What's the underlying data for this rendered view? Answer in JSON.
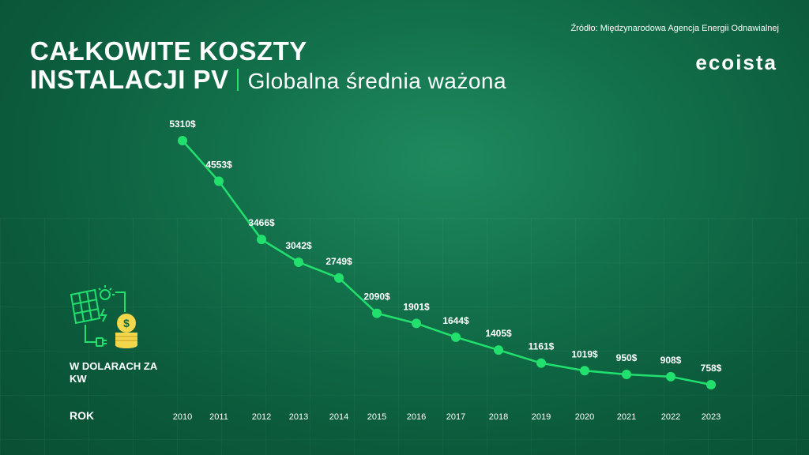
{
  "header": {
    "title_line1": "CAŁKOWITE KOSZTY",
    "title_line2": "INSTALACJI PV",
    "subtitle": "Globalna średnia ważona",
    "source": "Źródło: Międzynarodowa Agencja Energii Odnawialnej",
    "brand": "ecoista"
  },
  "labels": {
    "unit": "W DOLARACH ZA KW",
    "year": "ROK"
  },
  "icons": {
    "solar": "solar-panel-icon",
    "coins": "coin-stack-icon"
  },
  "colors": {
    "accent": "#22e06e",
    "text": "#ffffff",
    "background": "#0f6a45"
  },
  "chart_data": {
    "type": "line",
    "x": [
      "2010",
      "2011",
      "2012",
      "2013",
      "2014",
      "2015",
      "2016",
      "2017",
      "2018",
      "2019",
      "2020",
      "2021",
      "2022",
      "2023"
    ],
    "values": [
      5310,
      4553,
      3466,
      3042,
      2749,
      2090,
      1901,
      1644,
      1405,
      1161,
      1019,
      950,
      908,
      758
    ],
    "data_labels": [
      "5310$",
      "4553$",
      "3466$",
      "3042$",
      "2749$",
      "2090$",
      "1901$",
      "1644$",
      "1405$",
      "1161$",
      "1019$",
      "950$",
      "908$",
      "758$"
    ],
    "title": "CAŁKOWITE KOSZTY INSTALACJI PV",
    "subtitle": "Globalna średnia ważona",
    "xlabel": "ROK",
    "ylabel": "W DOLARACH ZA KW",
    "grid": false,
    "legend": "none"
  }
}
